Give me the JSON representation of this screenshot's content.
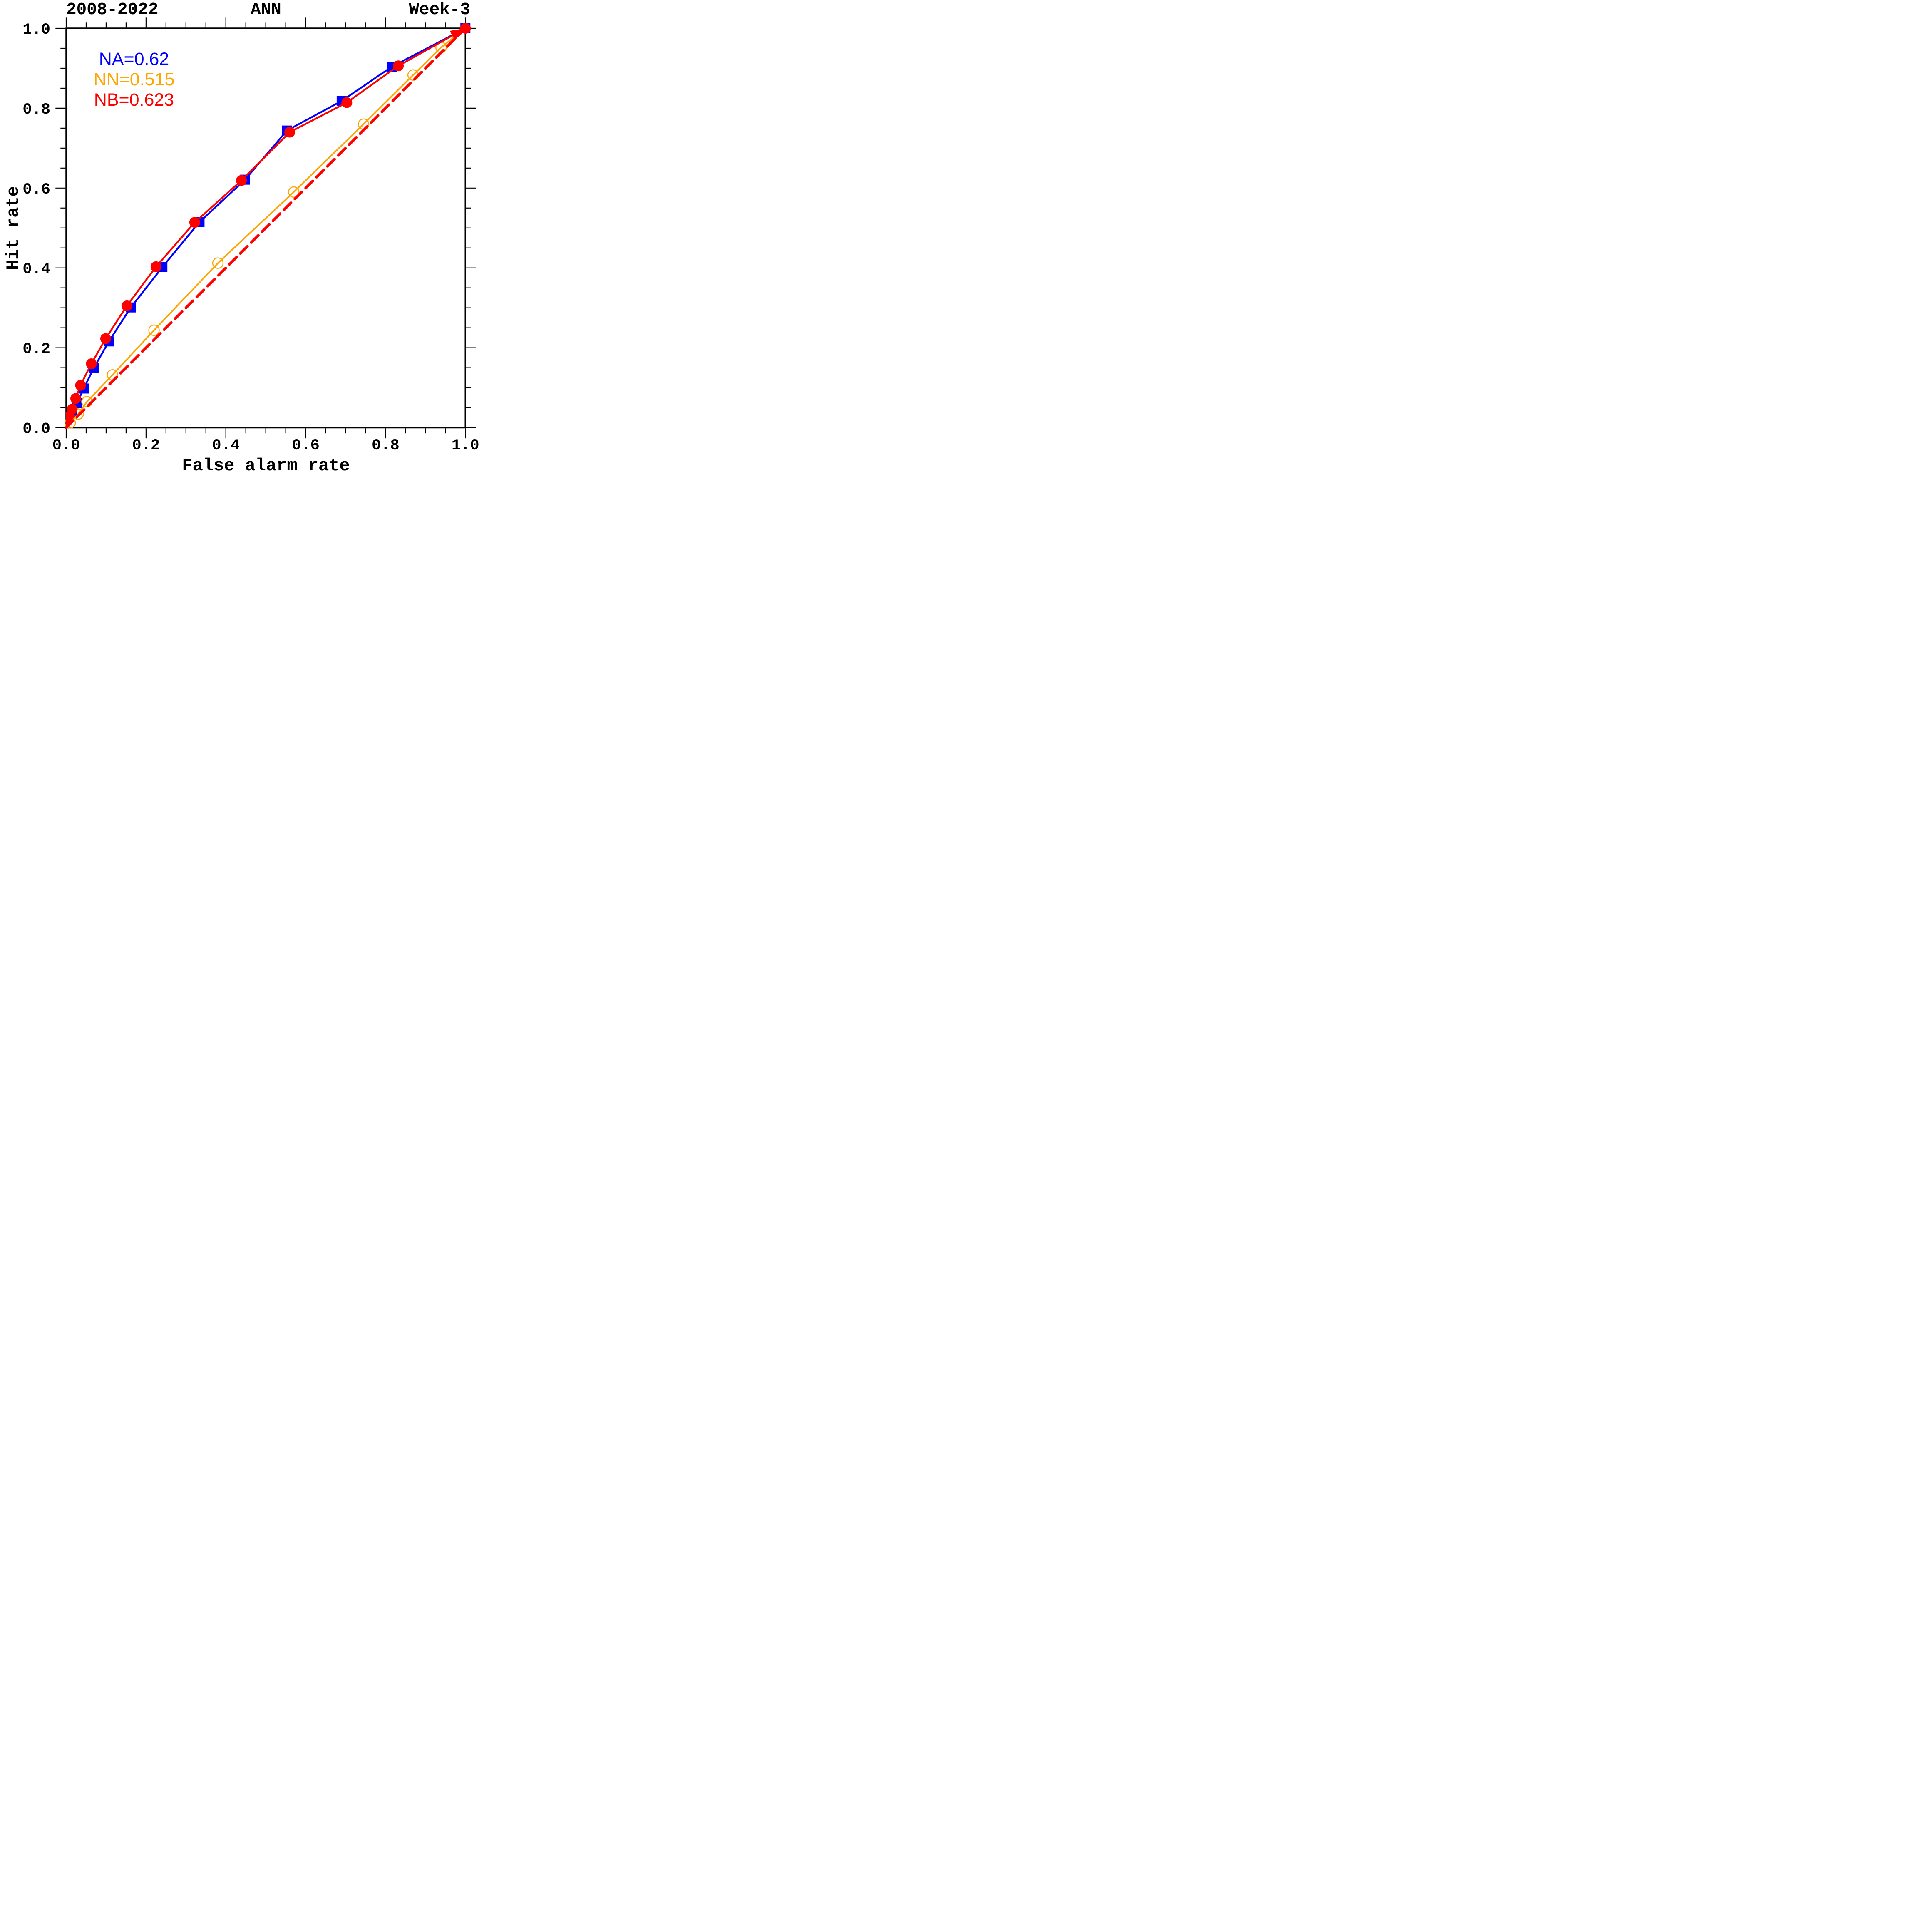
{
  "chart_data": {
    "type": "line",
    "subtype": "ROC-curve",
    "title_left": "2008-2022",
    "title_center": "ANN",
    "title_right": "Week-3",
    "xlabel": "False alarm rate",
    "ylabel": "Hit rate",
    "xlim": [
      0.0,
      1.0
    ],
    "ylim": [
      0.0,
      1.0
    ],
    "grid": false,
    "x_tick_labels": [
      "0.0",
      "0.2",
      "0.4",
      "0.6",
      "0.8",
      "1.0"
    ],
    "y_tick_labels": [
      "0.0",
      "0.2",
      "0.4",
      "0.6",
      "0.8",
      "1.0"
    ],
    "major_tick_interval": 0.2,
    "minor_tick_interval": 0.05,
    "frame_color": "#000000",
    "background_color": "#FFFFFF",
    "legend_position": "upper-left-inside",
    "legend": [
      {
        "label": "NA=0.62",
        "color": "#0000FF"
      },
      {
        "label": "NN=0.515",
        "color": "#FFA500"
      },
      {
        "label": "NB=0.623",
        "color": "#FF0000"
      }
    ],
    "series": [
      {
        "name": "NA",
        "auc": 0.62,
        "color": "#0000FF",
        "line_style": "solid",
        "marker": "filled-square",
        "marker_at_start": false,
        "marker_at_end": true,
        "arrow_ends": false,
        "points": [
          [
            0,
            0
          ],
          [
            0.014,
            0.034
          ],
          [
            0.027,
            0.061
          ],
          [
            0.044,
            0.098
          ],
          [
            0.069,
            0.149
          ],
          [
            0.107,
            0.216
          ],
          [
            0.162,
            0.301
          ],
          [
            0.241,
            0.402
          ],
          [
            0.334,
            0.515
          ],
          [
            0.448,
            0.621
          ],
          [
            0.553,
            0.744
          ],
          [
            0.69,
            0.818
          ],
          [
            0.816,
            0.904
          ],
          [
            1,
            1
          ]
        ]
      },
      {
        "name": "NN",
        "auc": 0.515,
        "color": "#FFA500",
        "line_style": "solid",
        "marker": "open-circle",
        "marker_at_start": false,
        "marker_at_end": false,
        "arrow_ends": false,
        "points": [
          [
            0,
            0
          ],
          [
            0.01,
            0.012
          ],
          [
            0.03,
            0.034
          ],
          [
            0.052,
            0.065
          ],
          [
            0.116,
            0.132
          ],
          [
            0.22,
            0.244
          ],
          [
            0.38,
            0.412
          ],
          [
            0.57,
            0.59
          ],
          [
            0.745,
            0.76
          ],
          [
            0.869,
            0.883
          ],
          [
            0.939,
            0.952
          ],
          [
            1,
            1
          ]
        ]
      },
      {
        "name": "NB",
        "auc": 0.623,
        "color": "#FF0000",
        "line_style": "solid",
        "marker": "filled-circle",
        "marker_at_start": false,
        "marker_at_end": true,
        "arrow_ends": true,
        "points": [
          [
            0,
            0
          ],
          [
            0.015,
            0.046
          ],
          [
            0.024,
            0.073
          ],
          [
            0.036,
            0.106
          ],
          [
            0.063,
            0.16
          ],
          [
            0.099,
            0.223
          ],
          [
            0.152,
            0.305
          ],
          [
            0.225,
            0.403
          ],
          [
            0.322,
            0.514
          ],
          [
            0.439,
            0.619
          ],
          [
            0.56,
            0.74
          ],
          [
            0.703,
            0.814
          ],
          [
            0.832,
            0.906
          ],
          [
            1,
            1
          ]
        ]
      }
    ],
    "reference_line": {
      "name": "no-skill diagonal",
      "color": "#FF0000",
      "style": "dashed",
      "from": [
        0,
        0
      ],
      "to": [
        1,
        1
      ]
    }
  }
}
